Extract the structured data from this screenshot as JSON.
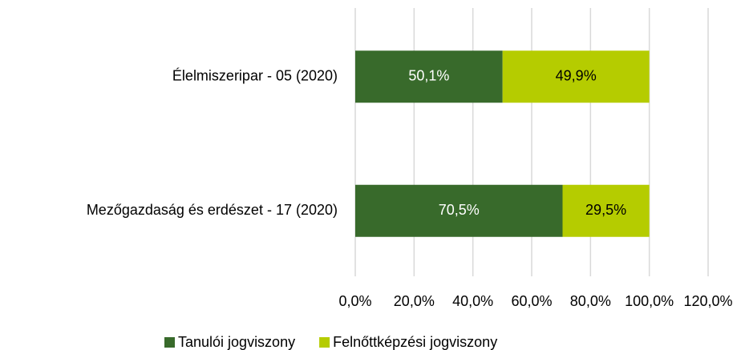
{
  "chart_data": {
    "type": "stacked_barh",
    "categories": [
      "Élelmiszeripar - 05 (2020)",
      "Mezőgazdaság és erdészet - 17 (2020)"
    ],
    "series": [
      {
        "name": "Tanulói jogviszony",
        "color": "#386a2b",
        "values": [
          50.1,
          70.5
        ],
        "value_labels": [
          "50,1%",
          "70,5%"
        ]
      },
      {
        "name": "Felnőttképzési jogviszony",
        "color": "#b5cc00",
        "values": [
          49.9,
          29.5
        ],
        "value_labels": [
          "49,9%",
          "29,5%"
        ]
      }
    ],
    "xlim": [
      0,
      120
    ],
    "xticks": [
      {
        "value": 0,
        "label": "0,0%"
      },
      {
        "value": 20,
        "label": "20,0%"
      },
      {
        "value": 40,
        "label": "40,0%"
      },
      {
        "value": 60,
        "label": "60,0%"
      },
      {
        "value": 80,
        "label": "80,0%"
      },
      {
        "value": 100,
        "label": "100,0%"
      },
      {
        "value": 120,
        "label": "120,0%"
      }
    ],
    "grid": true,
    "legend": "bottom"
  }
}
